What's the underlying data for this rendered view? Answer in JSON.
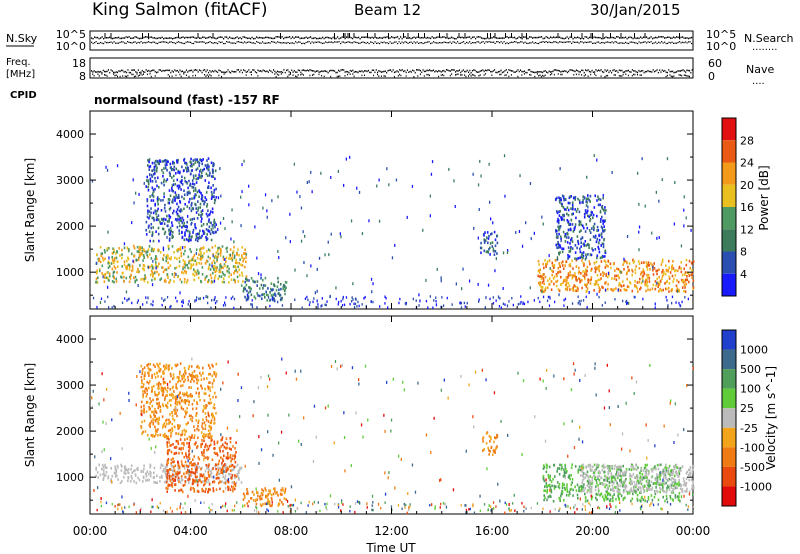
{
  "header": {
    "station": "King Salmon (fitACF)",
    "beam": "Beam 12",
    "date": "30/Jan/2015"
  },
  "left_labels": {
    "nsky": "N.Sky",
    "freq_line1": "Freq.",
    "freq_line2": "[MHz]",
    "cpid": "CPID"
  },
  "right_labels": {
    "nsearch": "N.Search",
    "nsearch_dots": "........",
    "nave": "Nave",
    "nave_dots": "...."
  },
  "status_panels": {
    "noise_left_ticks": [
      "10^5",
      "10^0"
    ],
    "noise_right_ticks": [
      "10^5",
      "10^0"
    ],
    "freq_left_ticks": [
      "18",
      "8"
    ],
    "freq_right_ticks": [
      "60",
      "0"
    ],
    "cpid_text": "normalsound (fast) -157 RF"
  },
  "colors": {
    "power_scale": [
      "#1a1aff",
      "#2b4fb0",
      "#3c7c5c",
      "#4f9a62",
      "#eac020",
      "#f39a1a",
      "#ea5a14",
      "#e21010"
    ],
    "velocity_scale": [
      "#1f3fcc",
      "#3d6a8c",
      "#4f9e5c",
      "#60cc3a",
      "#bbbbbb",
      "#f2a51a",
      "#f07a14",
      "#ea4a10",
      "#e20a0a"
    ]
  },
  "chart_data": [
    {
      "type": "heatmap",
      "panel": "power",
      "ylabel": "Slant Range [km]",
      "yticks": [
        "1000",
        "2000",
        "3000",
        "4000"
      ],
      "ylim": [
        200,
        4500
      ],
      "xlim": [
        "00:00",
        "00:00"
      ],
      "colorbar_label": "Power [dB]",
      "colorbar_ticks": [
        "4",
        "8",
        "12",
        "16",
        "20",
        "24",
        "28"
      ],
      "regions": [
        {
          "t0": 0.2,
          "t1": 6.2,
          "r0": 800,
          "r1": 1600,
          "value": 20
        },
        {
          "t0": 2.2,
          "t1": 5.0,
          "r0": 1700,
          "r1": 3500,
          "value": 8
        },
        {
          "t0": 6.0,
          "t1": 7.8,
          "r0": 400,
          "r1": 900,
          "value": 12
        },
        {
          "t0": 15.5,
          "t1": 16.2,
          "r0": 1400,
          "r1": 1900,
          "value": 8
        },
        {
          "t0": 17.8,
          "t1": 24.0,
          "r0": 600,
          "r1": 1300,
          "value": 24
        },
        {
          "t0": 18.5,
          "t1": 20.5,
          "r0": 1300,
          "r1": 2700,
          "value": 8
        }
      ]
    },
    {
      "type": "heatmap",
      "panel": "velocity",
      "ylabel": "Slant Range [km]",
      "yticks": [
        "1000",
        "2000",
        "3000",
        "4000"
      ],
      "ylim": [
        200,
        4500
      ],
      "xlabel": "Time UT",
      "xticks": [
        "00:00",
        "04:00",
        "08:00",
        "12:00",
        "16:00",
        "20:00",
        "00:00"
      ],
      "colorbar_label": "Velocity [m s^-1]",
      "colorbar_ticks": [
        "1000",
        "500",
        "100",
        "25",
        "-25",
        "-100",
        "-500",
        "-1000"
      ],
      "regions": [
        {
          "t0": 0.2,
          "t1": 6.0,
          "r0": 900,
          "r1": 1300,
          "value": 0
        },
        {
          "t0": 3.0,
          "t1": 5.8,
          "r0": 700,
          "r1": 1900,
          "value": -500
        },
        {
          "t0": 2.0,
          "t1": 5.0,
          "r0": 1900,
          "r1": 3500,
          "value": -100
        },
        {
          "t0": 6.0,
          "t1": 7.8,
          "r0": 400,
          "r1": 800,
          "value": -100
        },
        {
          "t0": 15.6,
          "t1": 16.2,
          "r0": 1500,
          "r1": 2000,
          "value": -100
        },
        {
          "t0": 18.0,
          "t1": 23.5,
          "r0": 500,
          "r1": 1300,
          "value": 100
        },
        {
          "t0": 19.5,
          "t1": 24.0,
          "r0": 700,
          "r1": 1300,
          "value": 0
        }
      ]
    }
  ]
}
